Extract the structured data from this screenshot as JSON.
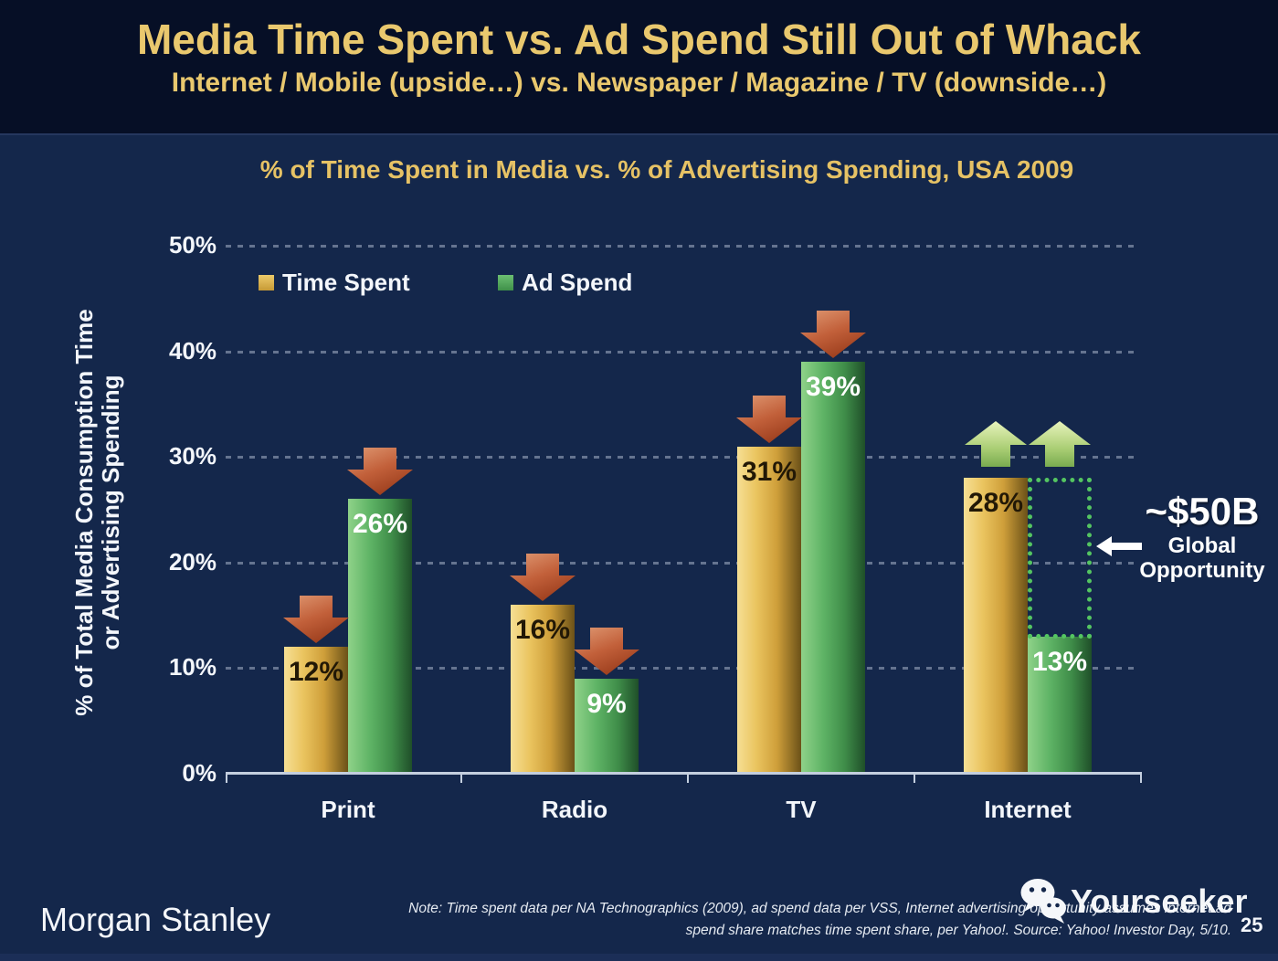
{
  "slide": {
    "title": "Media Time Spent vs. Ad Spend Still Out of Whack",
    "subtitle": "Internet / Mobile (upside…) vs. Newspaper / Magazine / TV (downside…)",
    "page_number": "25"
  },
  "chart_data": {
    "type": "bar",
    "title": "% of Time Spent in Media vs. % of Advertising Spending, USA 2009",
    "categories": [
      "Print",
      "Radio",
      "TV",
      "Internet"
    ],
    "series": [
      {
        "name": "Time Spent",
        "color_key": "gold",
        "values": [
          12,
          16,
          31,
          28
        ]
      },
      {
        "name": "Ad Spend",
        "color_key": "green",
        "values": [
          26,
          9,
          39,
          13
        ]
      }
    ],
    "value_suffix": "%",
    "ylabel_line1": "% of Total Media Consumption Time",
    "ylabel_line2": "or Advertising Spending",
    "ylim": [
      0,
      50
    ],
    "ytick_step": 10,
    "yticks": [
      "50%",
      "40%",
      "30%",
      "20%",
      "10%",
      "0%"
    ],
    "grid": "dotted-horizontal",
    "legend_position": "top-left-inside",
    "arrow_directions": [
      [
        "down",
        "down"
      ],
      [
        "down",
        "down"
      ],
      [
        "down",
        "down"
      ],
      [
        "up",
        "up"
      ]
    ],
    "annotation": {
      "value": "~$50B",
      "line1": "Global",
      "line2": "Opportunity",
      "gap_category": "Internet",
      "gap_from_value": 13,
      "gap_to_value": 28
    }
  },
  "colors": {
    "header_background": "#060f26",
    "body_background": "#14274b",
    "accent_gold_text": "#e9c86e",
    "bar_gold": "#d9ad4a",
    "bar_green": "#54a95e",
    "down_arrow": "#c2603a",
    "up_arrow": "#aace74",
    "opportunity_green": "#54c561",
    "axis_line": "#c4cfdf"
  },
  "footer": {
    "logo": "Morgan Stanley",
    "note_line1": "Note: Time spent data per NA Technographics (2009), ad spend data per VSS, Internet advertising opportunity assumes internet ad",
    "note_line2": "spend share matches time spent share, per Yahoo!. Source: Yahoo! Investor Day, 5/10.",
    "watermark": "Yourseeker"
  }
}
